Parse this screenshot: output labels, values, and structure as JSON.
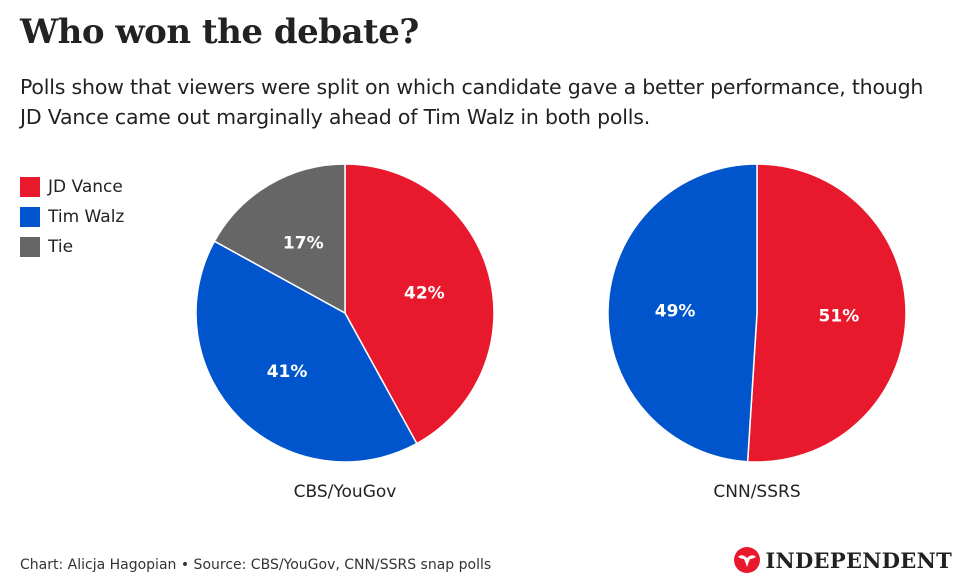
{
  "title": "Who won the debate?",
  "subtitle": "Polls show that viewers were split on which candidate gave a better performance, though JD Vance came out marginally ahead of Tim Walz in both polls.",
  "colors": {
    "jd_vance": "#E8192C",
    "tim_walz": "#0055CC",
    "tie": "#666666"
  },
  "legend": [
    {
      "label": "JD Vance",
      "color": "#E8192C"
    },
    {
      "label": "Tim Walz",
      "color": "#0055CC"
    },
    {
      "label": "Tie",
      "color": "#666666"
    }
  ],
  "chart_data": [
    {
      "type": "pie",
      "title": "CBS/YouGov",
      "slices": [
        {
          "name": "JD Vance",
          "value": 42,
          "label": "42%",
          "color": "#E8192C"
        },
        {
          "name": "Tim Walz",
          "value": 41,
          "label": "41%",
          "color": "#0055CC"
        },
        {
          "name": "Tie",
          "value": 17,
          "label": "17%",
          "color": "#666666"
        }
      ],
      "start": "top",
      "direction": "clockwise"
    },
    {
      "type": "pie",
      "title": "CNN/SSRS",
      "slices": [
        {
          "name": "JD Vance",
          "value": 51,
          "label": "51%",
          "color": "#E8192C"
        },
        {
          "name": "Tim Walz",
          "value": 49,
          "label": "49%",
          "color": "#0055CC"
        }
      ],
      "start": "top",
      "direction": "clockwise"
    }
  ],
  "footer": {
    "credit": "Chart: Alicja Hagopian • Source: CBS/YouGov, CNN/SSRS snap polls"
  },
  "logo": {
    "text": "INDEPENDENT",
    "icon": "eagle-icon"
  }
}
